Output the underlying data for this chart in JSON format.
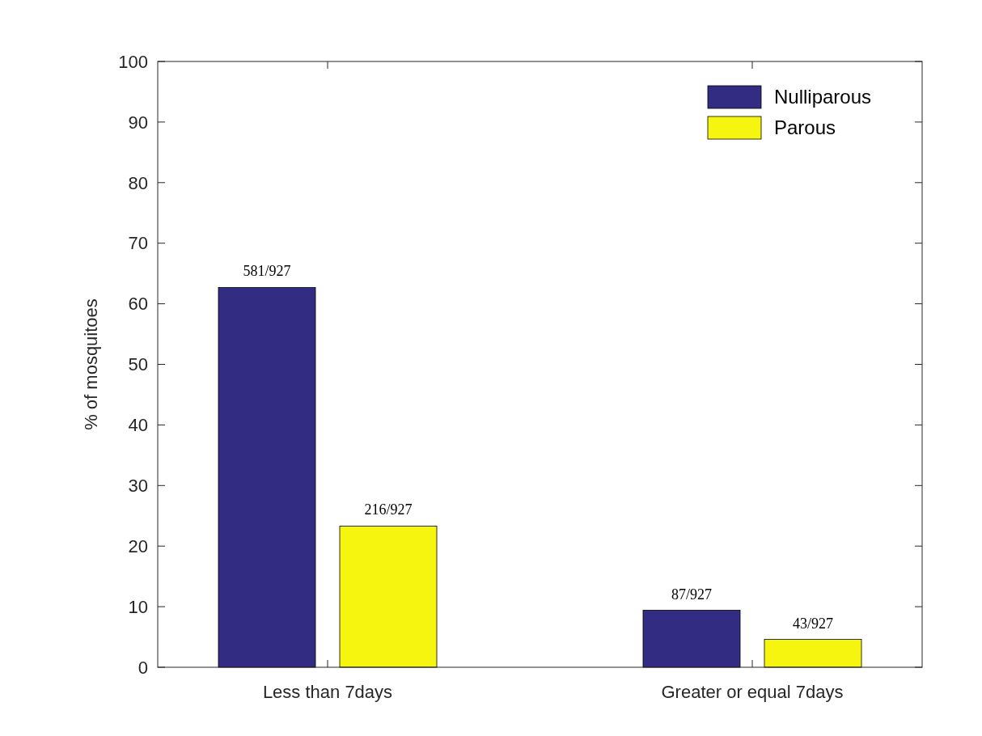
{
  "chart_data": {
    "type": "bar",
    "ylabel": "% of mosquitoes",
    "categories": [
      "Less than 7days",
      "Greater or equal 7days"
    ],
    "series": [
      {
        "name": "Nulliparous",
        "color": "#332c83",
        "values": [
          62.7,
          9.4
        ],
        "value_labels": [
          "581/927",
          "87/927"
        ]
      },
      {
        "name": "Parous",
        "color": "#f5f510",
        "values": [
          23.3,
          4.6
        ],
        "value_labels": [
          "216/927",
          "43/927"
        ]
      }
    ],
    "ylim": [
      0,
      100
    ],
    "yticks": [
      0,
      10,
      20,
      30,
      40,
      50,
      60,
      70,
      80,
      90,
      100
    ],
    "legend": "top right",
    "grid": false
  }
}
